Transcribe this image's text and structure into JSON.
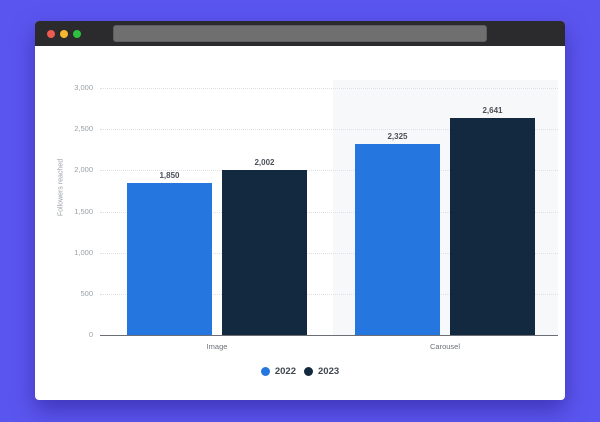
{
  "window": {
    "traffic_lights": [
      "close",
      "minimize",
      "maximize"
    ],
    "colors": {
      "background": "#5b55ef",
      "titlebar": "#2b2b2e",
      "address_bar": "#6f6f6f"
    }
  },
  "chart_data": {
    "type": "bar",
    "title": "",
    "xlabel": "",
    "ylabel": "Followers reached",
    "categories": [
      "Image",
      "Carousel"
    ],
    "series": [
      {
        "name": "2022",
        "color": "#2576de",
        "values": [
          1850,
          2325
        ],
        "labels": [
          "1,850",
          "2,325"
        ]
      },
      {
        "name": "2023",
        "color": "#13293f",
        "values": [
          2002,
          2641
        ],
        "labels": [
          "2,002",
          "2,641"
        ]
      }
    ],
    "ylim": [
      0,
      3000
    ],
    "yticks": [
      0,
      500,
      1000,
      1500,
      2000,
      2500,
      3000
    ],
    "ytick_labels": [
      "0",
      "500",
      "1,000",
      "1,500",
      "2,000",
      "2,500",
      "3,000"
    ],
    "grid": true,
    "legend_position": "bottom-center"
  }
}
